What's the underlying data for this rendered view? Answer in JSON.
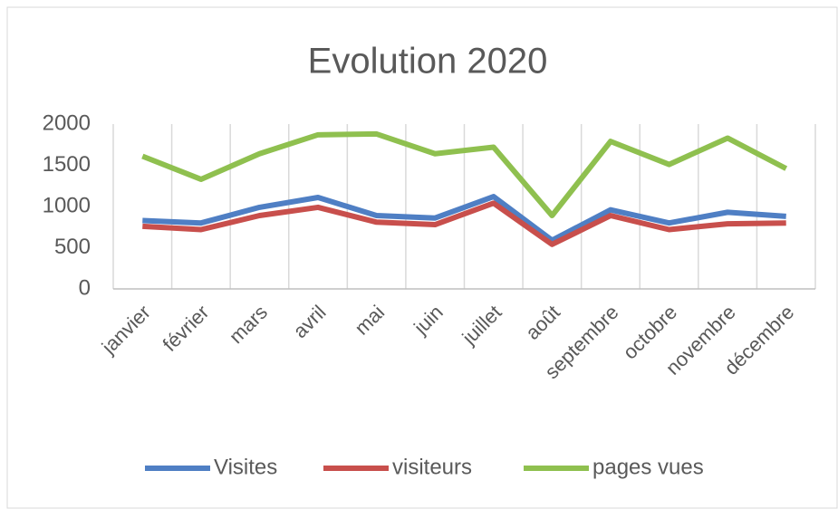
{
  "chart_data": {
    "type": "line",
    "title": "Evolution 2020",
    "categories": [
      "janvier",
      "février",
      "mars",
      "avril",
      "mai",
      "juin",
      "juillet",
      "août",
      "septembre",
      "octobre",
      "novembre",
      "décembre"
    ],
    "series": [
      {
        "name": "Visites",
        "color": "#4f7fc4",
        "values": [
          830,
          800,
          990,
          1110,
          890,
          860,
          1120,
          590,
          960,
          800,
          930,
          880
        ]
      },
      {
        "name": "visiteurs",
        "color": "#c84f4c",
        "values": [
          760,
          720,
          890,
          990,
          810,
          780,
          1040,
          540,
          890,
          720,
          790,
          800
        ]
      },
      {
        "name": "pages vues",
        "color": "#8fc04f",
        "values": [
          1610,
          1330,
          1640,
          1870,
          1880,
          1640,
          1720,
          890,
          1790,
          1510,
          1830,
          1460
        ]
      }
    ],
    "ylim": [
      0,
      2000
    ],
    "yticks": [
      0,
      500,
      1000,
      1500,
      2000
    ],
    "grid": "vertical",
    "legend": "bottom"
  }
}
